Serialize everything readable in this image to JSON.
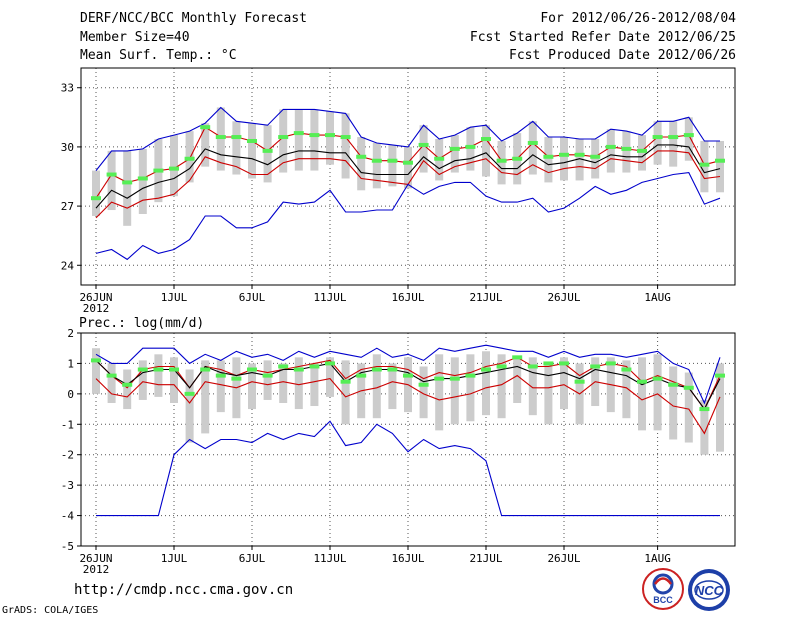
{
  "header": {
    "title": "DERF/NCC/BCC Monthly Forecast",
    "member": "Member Size=40",
    "variable": "Mean Surf. Temp.: °C",
    "period": "For 2012/06/26-2012/08/04",
    "started": "Fcst Started Refer Date 2012/06/25",
    "produced": "Fcst Produced Date 2012/06/26"
  },
  "footer": {
    "url": "http://cmdp.ncc.cma.gov.cn",
    "credit": "GrADS: COLA/IGES",
    "logo_left": "BCC",
    "logo_right": "NCC"
  },
  "colors": {
    "envelope": "#0000cc",
    "spread": "#cc0000",
    "mean": "#000000",
    "box": "#cccccc",
    "median": "#55ee55"
  },
  "chart_data": [
    {
      "type": "line",
      "title": "Mean Surf. Temp.: °C",
      "ylabel": "°C",
      "ylim": [
        23,
        34
      ],
      "yticks": [
        24,
        27,
        30,
        33
      ],
      "xtick_labels": [
        "26JUN",
        "1JUL",
        "6JUL",
        "11JUL",
        "16JUL",
        "21JUL",
        "26JUL",
        "1AUG"
      ],
      "year_label": "2012",
      "x_days": 40,
      "series": [
        {
          "name": "max",
          "values": [
            28.8,
            29.8,
            29.8,
            29.9,
            30.4,
            30.6,
            30.8,
            31.2,
            32.0,
            31.3,
            31.2,
            31.1,
            31.9,
            31.9,
            31.9,
            31.8,
            31.7,
            30.5,
            30.2,
            30.1,
            30.0,
            31.1,
            30.4,
            30.6,
            31.0,
            31.1,
            30.3,
            30.7,
            31.3,
            30.5,
            30.5,
            30.4,
            30.4,
            30.9,
            30.8,
            30.6,
            31.3,
            31.3,
            31.5,
            30.3,
            30.3
          ]
        },
        {
          "name": "upper",
          "values": [
            27.4,
            28.6,
            28.2,
            28.4,
            28.8,
            28.9,
            29.4,
            31.0,
            30.5,
            30.5,
            30.3,
            29.8,
            30.5,
            30.7,
            30.6,
            30.6,
            30.5,
            29.5,
            29.3,
            29.3,
            29.2,
            30.1,
            29.4,
            29.9,
            30.0,
            30.4,
            29.3,
            29.4,
            30.2,
            29.5,
            29.6,
            29.6,
            29.5,
            30.0,
            29.9,
            29.8,
            30.5,
            30.5,
            30.6,
            29.1,
            29.3
          ]
        },
        {
          "name": "mean",
          "values": [
            26.9,
            27.8,
            27.4,
            27.9,
            28.2,
            28.4,
            28.9,
            29.9,
            29.6,
            29.5,
            29.4,
            29.1,
            29.6,
            29.8,
            29.8,
            29.7,
            29.7,
            28.7,
            28.6,
            28.6,
            28.6,
            29.5,
            28.9,
            29.3,
            29.4,
            29.7,
            28.9,
            28.9,
            29.6,
            29.1,
            29.2,
            29.4,
            29.2,
            29.6,
            29.5,
            29.5,
            30.1,
            30.1,
            30.0,
            28.7,
            28.9
          ]
        },
        {
          "name": "lower",
          "values": [
            26.4,
            27.2,
            26.9,
            27.3,
            27.4,
            27.6,
            28.3,
            29.5,
            29.2,
            29.0,
            28.6,
            28.6,
            29.2,
            29.4,
            29.4,
            29.4,
            29.3,
            28.4,
            28.3,
            28.2,
            28.1,
            29.3,
            28.6,
            29.0,
            29.2,
            29.4,
            28.7,
            28.6,
            29.1,
            28.7,
            28.9,
            29.0,
            28.9,
            29.4,
            29.3,
            29.2,
            29.8,
            29.8,
            29.7,
            28.4,
            28.5
          ]
        },
        {
          "name": "min",
          "values": [
            24.6,
            24.8,
            24.3,
            25.0,
            24.6,
            24.8,
            25.3,
            26.5,
            26.5,
            25.9,
            25.9,
            26.2,
            27.2,
            27.1,
            27.2,
            27.8,
            26.7,
            26.7,
            26.8,
            26.8,
            28.1,
            27.6,
            28.0,
            28.2,
            28.2,
            27.5,
            27.2,
            27.2,
            27.4,
            26.7,
            26.9,
            27.4,
            28.0,
            27.6,
            27.8,
            28.2,
            28.4,
            28.6,
            28.7,
            27.1,
            27.4
          ]
        }
      ],
      "box_low": [
        26.5,
        26.8,
        26.0,
        26.6,
        27.2,
        27.5,
        28.2,
        29.0,
        28.8,
        28.6,
        28.4,
        28.2,
        28.7,
        28.8,
        28.8,
        29.1,
        28.4,
        27.8,
        27.9,
        28.0,
        27.9,
        28.7,
        28.3,
        28.7,
        28.8,
        28.5,
        28.1,
        28.1,
        28.6,
        28.2,
        28.3,
        28.3,
        28.4,
        28.7,
        28.7,
        28.8,
        29.1,
        29.0,
        29.3,
        27.7,
        27.7
      ]
    },
    {
      "type": "line",
      "title": "Prec.: log(mm/d)",
      "ylabel": "log(mm/d)",
      "ylim": [
        -5,
        2
      ],
      "yticks": [
        -5,
        -4,
        -3,
        -2,
        -1,
        0,
        1,
        2
      ],
      "xtick_labels": [
        "26JUN",
        "1JUL",
        "6JUL",
        "11JUL",
        "16JUL",
        "21JUL",
        "26JUL",
        "1AUG"
      ],
      "year_label": "2012",
      "x_days": 40,
      "series": [
        {
          "name": "max",
          "values": [
            1.3,
            1.0,
            1.0,
            1.5,
            1.5,
            1.5,
            1.0,
            1.3,
            1.1,
            1.4,
            1.2,
            1.3,
            1.1,
            1.4,
            1.2,
            1.4,
            1.3,
            1.2,
            1.5,
            1.2,
            1.3,
            1.1,
            1.5,
            1.4,
            1.5,
            1.6,
            1.5,
            1.4,
            1.4,
            1.2,
            1.4,
            1.2,
            1.3,
            1.3,
            1.2,
            1.3,
            1.4,
            1.0,
            0.8,
            -0.3,
            1.2
          ]
        },
        {
          "name": "upper",
          "values": [
            1.1,
            0.6,
            0.2,
            0.8,
            0.9,
            0.9,
            0.2,
            0.9,
            0.8,
            0.6,
            0.8,
            0.7,
            0.8,
            0.9,
            1.0,
            1.1,
            0.5,
            0.8,
            0.9,
            0.9,
            0.8,
            0.5,
            0.7,
            0.6,
            0.7,
            0.9,
            1.0,
            1.2,
            0.9,
            0.9,
            1.0,
            0.6,
            0.9,
            1.0,
            0.9,
            0.4,
            0.6,
            0.4,
            0.2,
            -0.5,
            0.6
          ]
        },
        {
          "name": "mean",
          "values": [
            1.1,
            0.6,
            0.3,
            0.7,
            0.8,
            0.8,
            0.2,
            0.9,
            0.7,
            0.6,
            0.7,
            0.6,
            0.8,
            0.8,
            0.9,
            1.0,
            0.4,
            0.7,
            0.8,
            0.8,
            0.7,
            0.4,
            0.5,
            0.5,
            0.6,
            0.7,
            0.8,
            0.9,
            0.7,
            0.6,
            0.7,
            0.5,
            0.8,
            0.7,
            0.6,
            0.3,
            0.5,
            0.3,
            0.2,
            -0.5,
            0.5
          ]
        },
        {
          "name": "lower",
          "values": [
            0.5,
            0.0,
            -0.1,
            0.4,
            0.3,
            0.3,
            -0.3,
            0.4,
            0.3,
            0.2,
            0.4,
            0.3,
            0.4,
            0.3,
            0.4,
            0.5,
            -0.1,
            0.1,
            0.2,
            0.4,
            0.3,
            0.0,
            -0.2,
            -0.1,
            0.0,
            0.2,
            0.3,
            0.6,
            0.2,
            0.2,
            0.3,
            0.0,
            0.4,
            0.3,
            0.2,
            -0.2,
            0.0,
            -0.4,
            -0.5,
            -1.3,
            -0.1
          ]
        },
        {
          "name": "min",
          "values": [
            -4.0,
            -4.0,
            -4.0,
            -4.0,
            -4.0,
            -2.0,
            -1.5,
            -1.8,
            -1.5,
            -1.5,
            -1.6,
            -1.3,
            -1.5,
            -1.3,
            -1.4,
            -0.9,
            -1.7,
            -1.6,
            -1.0,
            -1.3,
            -1.9,
            -1.5,
            -1.8,
            -1.7,
            -1.8,
            -2.2,
            -4.0,
            -4.0,
            -4.0,
            -4.0,
            -4.0,
            -4.0,
            -4.0,
            -4.0,
            -4.0,
            -4.0,
            -4.0,
            -4.0,
            -4.0,
            -4.0,
            -4.0
          ]
        }
      ],
      "box_low": [
        0.0,
        -0.3,
        -0.5,
        -0.2,
        -0.1,
        -0.3,
        -1.6,
        -1.3,
        -0.6,
        -0.8,
        -0.5,
        -0.2,
        -0.3,
        -0.5,
        -0.4,
        -0.1,
        -1.0,
        -0.8,
        -0.8,
        -0.5,
        -0.6,
        -0.8,
        -1.2,
        -1.0,
        -0.9,
        -0.7,
        -0.8,
        -0.3,
        -0.7,
        -1.0,
        -0.5,
        -1.0,
        -0.4,
        -0.6,
        -0.8,
        -1.2,
        -1.2,
        -1.5,
        -1.6,
        -2.0,
        -1.9
      ],
      "box_high": [
        1.5,
        1.0,
        0.8,
        1.1,
        1.3,
        1.2,
        0.8,
        1.1,
        1.1,
        1.2,
        1.0,
        1.1,
        1.0,
        1.2,
        1.0,
        1.2,
        1.1,
        1.0,
        1.3,
        1.0,
        1.2,
        0.9,
        1.3,
        1.2,
        1.3,
        1.4,
        1.3,
        1.2,
        1.2,
        1.0,
        1.2,
        1.0,
        1.2,
        1.2,
        1.1,
        1.2,
        1.3,
        0.9,
        0.7,
        -0.2,
        1.0
      ],
      "median": [
        1.1,
        0.6,
        0.3,
        0.8,
        0.8,
        0.8,
        -0.0,
        0.8,
        0.6,
        0.5,
        0.8,
        0.6,
        0.9,
        0.8,
        0.9,
        1.0,
        0.4,
        0.6,
        0.8,
        0.8,
        0.6,
        0.3,
        0.5,
        0.5,
        0.6,
        0.8,
        0.9,
        1.2,
        0.9,
        1.0,
        1.0,
        0.4,
        0.9,
        1.0,
        0.8,
        0.4,
        0.5,
        0.3,
        0.2,
        -0.5,
        0.6
      ]
    }
  ]
}
